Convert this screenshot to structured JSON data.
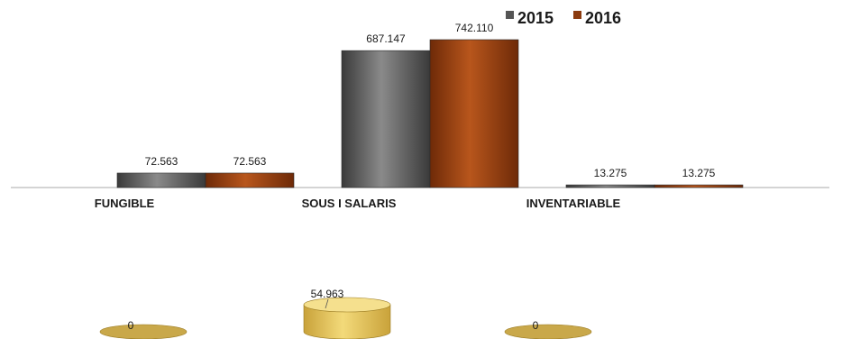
{
  "chart_data": [
    {
      "type": "bar",
      "categories": [
        "FUNGIBLE",
        "SOUS I SALARIS",
        "INVENTARIABLE"
      ],
      "series": [
        {
          "name": "2015",
          "values": [
            72563,
            687147,
            13275
          ],
          "labels": [
            "72.563",
            "687.147",
            "13.275"
          ],
          "color": "#555555"
        },
        {
          "name": "2016",
          "values": [
            72563,
            742110,
            13275
          ],
          "labels": [
            "72.563",
            "742.110",
            "13.275"
          ],
          "color": "#8b3a0e"
        }
      ],
      "ylim": [
        0,
        742110
      ],
      "legend": "top-right",
      "grid": false
    },
    {
      "type": "bar",
      "subtype": "3d-cylinder",
      "categories": [
        "FUNGIBLE",
        "SOUS I SALARIS",
        "INVENTARIABLE"
      ],
      "values": [
        0,
        54963,
        0
      ],
      "labels": [
        "0",
        "54.963",
        "0"
      ],
      "color": "#e6c85a"
    }
  ]
}
